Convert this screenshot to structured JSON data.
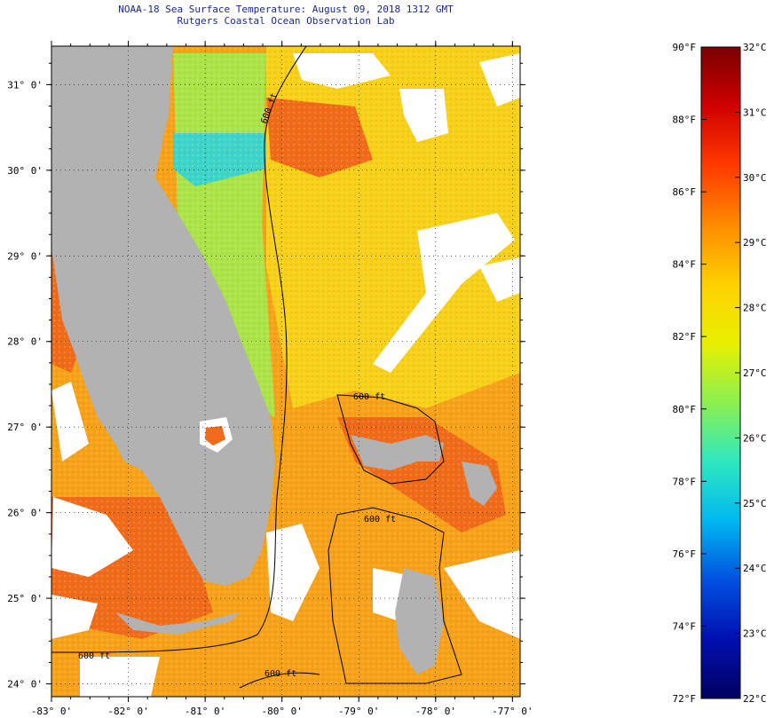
{
  "title": {
    "line1": "NOAA-18 Sea Surface Temperature:  August 09, 2018 1312 GMT",
    "line2": "Rutgers Coastal Ocean Observation Lab"
  },
  "map": {
    "lon_range": [
      -83,
      -76.9
    ],
    "lat_range": [
      23.85,
      31.45
    ],
    "lat_ticks": [
      {
        "value": 31,
        "label": "31° 0'"
      },
      {
        "value": 30,
        "label": "30° 0'"
      },
      {
        "value": 29,
        "label": "29° 0'"
      },
      {
        "value": 28,
        "label": "28° 0'"
      },
      {
        "value": 27,
        "label": "27° 0'"
      },
      {
        "value": 26,
        "label": "26° 0'"
      },
      {
        "value": 25,
        "label": "25° 0'"
      },
      {
        "value": 24,
        "label": "24° 0'"
      }
    ],
    "lon_ticks": [
      {
        "value": -83,
        "label": "-83° 0'"
      },
      {
        "value": -82,
        "label": "-82° 0'"
      },
      {
        "value": -81,
        "label": "-81° 0'"
      },
      {
        "value": -80,
        "label": "-80° 0'"
      },
      {
        "value": -79,
        "label": "-79° 0'"
      },
      {
        "value": -78,
        "label": "-78° 0'"
      },
      {
        "value": -77,
        "label": "-77° 0'"
      }
    ],
    "contour_labels": [
      "600 ft",
      "600 ft",
      "600 ft",
      "600 ft",
      "600 ft"
    ],
    "colors": {
      "land": "#b2b2b2",
      "cloud": "#ffffff",
      "warm_water": "#f6a21a",
      "hot_water": "#ef6a1a",
      "mild_water": "#f7d21a",
      "cool_water": "#a8e64a",
      "cold_water": "#39d6d0"
    }
  },
  "colorbar": {
    "fahrenheit_labels": [
      "90°F",
      "88°F",
      "86°F",
      "84°F",
      "82°F",
      "80°F",
      "78°F",
      "76°F",
      "74°F",
      "72°F"
    ],
    "fahrenheit_values": [
      90,
      88,
      86,
      84,
      82,
      80,
      78,
      76,
      74,
      72
    ],
    "celsius_labels": [
      "32°C",
      "31°C",
      "30°C",
      "29°C",
      "28°C",
      "27°C",
      "26°C",
      "25°C",
      "24°C",
      "23°C",
      "22°C"
    ],
    "celsius_values": [
      32,
      31,
      30,
      29,
      28,
      27,
      26,
      25,
      24,
      23,
      22
    ],
    "range_f": [
      72,
      90
    ],
    "range_c": [
      22,
      32
    ],
    "gradient": [
      "#7a0000",
      "#d00000",
      "#ff3a00",
      "#ff8a00",
      "#ffd000",
      "#e8f000",
      "#8cf050",
      "#2ee8c0",
      "#00b8f0",
      "#0050e0",
      "#0010b0",
      "#000060"
    ]
  }
}
